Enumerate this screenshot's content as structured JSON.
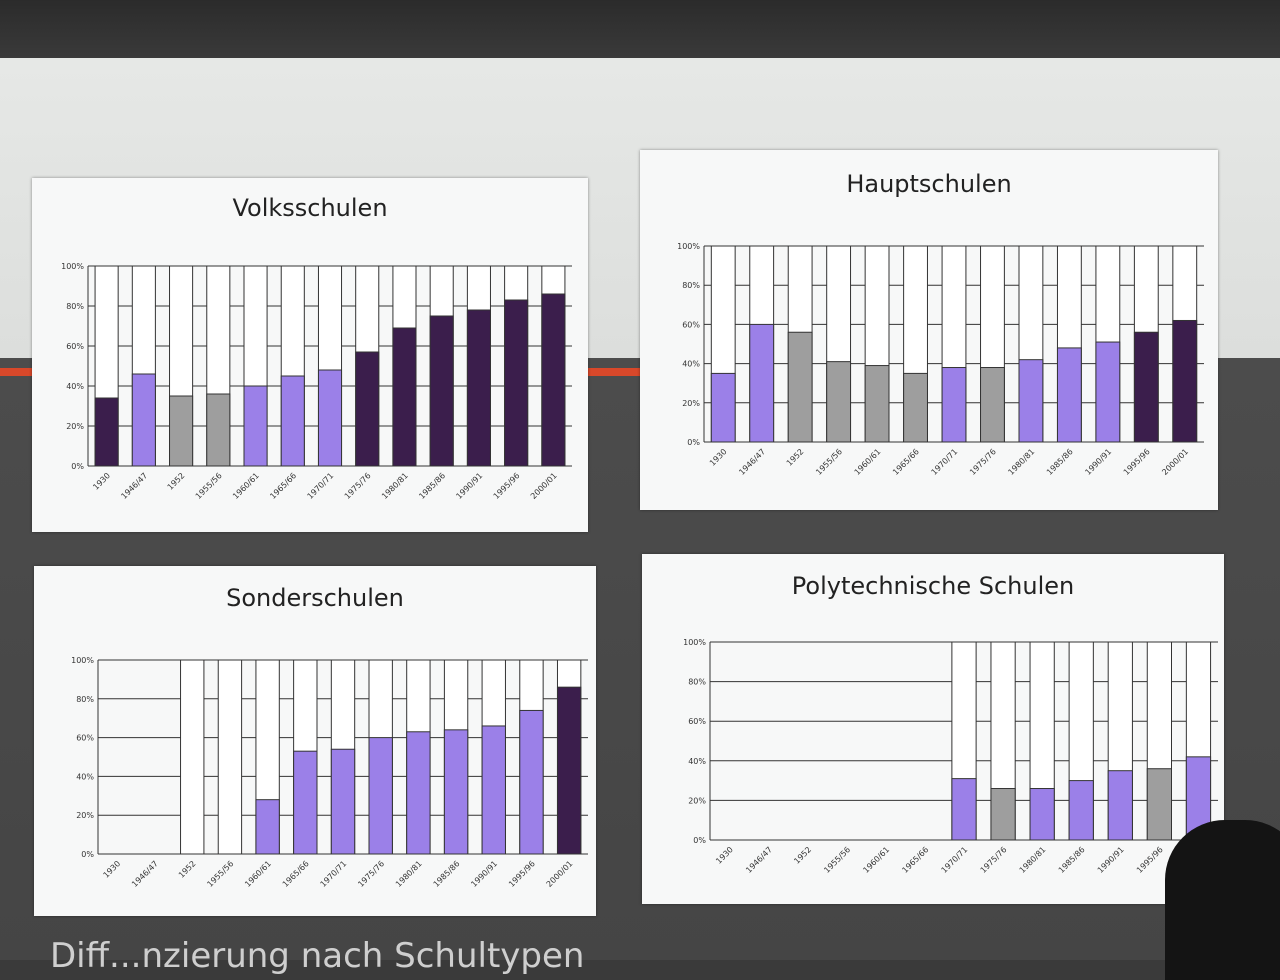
{
  "footer": {
    "text": "Diff...nzierung nach Schultypen"
  },
  "colors": {
    "purple": "#9b80e8",
    "dark": "#3b1e4c",
    "gray": "#9e9e9e",
    "empty": "#ffffff",
    "grid": "#333333"
  },
  "chart_data": [
    {
      "type": "bar",
      "stacked": "100%",
      "title": "Volksschulen",
      "ylim": [
        0,
        100
      ],
      "yticks": [
        "0%",
        "20%",
        "40%",
        "60%",
        "80%",
        "100%"
      ],
      "categories": [
        "1930",
        "1946/47",
        "1952",
        "1955/56",
        "1960/61",
        "1965/66",
        "1970/71",
        "1975/76",
        "1980/81",
        "1985/86",
        "1990/91",
        "1995/96",
        "2000/01"
      ],
      "values": [
        34,
        46,
        35,
        36,
        40,
        45,
        48,
        57,
        69,
        75,
        78,
        83,
        86
      ],
      "bar_colors": [
        "dark",
        "purple",
        "gray",
        "gray",
        "purple",
        "purple",
        "purple",
        "dark",
        "dark",
        "dark",
        "dark",
        "dark",
        "dark"
      ]
    },
    {
      "type": "bar",
      "stacked": "100%",
      "title": "Hauptschulen",
      "ylim": [
        0,
        100
      ],
      "yticks": [
        "0%",
        "20%",
        "40%",
        "60%",
        "80%",
        "100%"
      ],
      "categories": [
        "1930",
        "1946/47",
        "1952",
        "1955/56",
        "1960/61",
        "1965/66",
        "1970/71",
        "1975/76",
        "1980/81",
        "1985/86",
        "1990/91",
        "1995/96",
        "2000/01"
      ],
      "values": [
        35,
        60,
        56,
        41,
        39,
        35,
        38,
        38,
        42,
        48,
        51,
        56,
        62
      ],
      "bar_colors": [
        "purple",
        "purple",
        "gray",
        "gray",
        "gray",
        "gray",
        "purple",
        "gray",
        "purple",
        "purple",
        "purple",
        "dark",
        "dark"
      ]
    },
    {
      "type": "bar",
      "stacked": "100%",
      "title": "Sonderschulen",
      "ylim": [
        0,
        100
      ],
      "yticks": [
        "0%",
        "20%",
        "40%",
        "60%",
        "80%",
        "100%"
      ],
      "categories": [
        "1930",
        "1946/47",
        "1952",
        "1955/56",
        "1960/61",
        "1965/66",
        "1970/71",
        "1975/76",
        "1980/81",
        "1985/86",
        "1990/91",
        "1995/96",
        "2000/01"
      ],
      "values": [
        null,
        null,
        0,
        0,
        28,
        53,
        54,
        60,
        63,
        64,
        66,
        74,
        86
      ],
      "bar_colors": [
        "empty",
        "empty",
        "empty",
        "empty",
        "purple",
        "purple",
        "purple",
        "purple",
        "purple",
        "purple",
        "purple",
        "purple",
        "dark"
      ]
    },
    {
      "type": "bar",
      "stacked": "100%",
      "title": "Polytechnische Schulen",
      "ylim": [
        0,
        100
      ],
      "yticks": [
        "0%",
        "20%",
        "40%",
        "60%",
        "80%",
        "100%"
      ],
      "categories": [
        "1930",
        "1946/47",
        "1952",
        "1955/56",
        "1960/61",
        "1965/66",
        "1970/71",
        "1975/76",
        "1980/81",
        "1985/86",
        "1990/91",
        "1995/96",
        "2000/01"
      ],
      "values": [
        null,
        null,
        null,
        null,
        null,
        null,
        31,
        26,
        26,
        30,
        35,
        36,
        42
      ],
      "bar_colors": [
        "empty",
        "empty",
        "empty",
        "empty",
        "empty",
        "empty",
        "purple",
        "gray",
        "purple",
        "purple",
        "purple",
        "gray",
        "purple"
      ]
    }
  ]
}
